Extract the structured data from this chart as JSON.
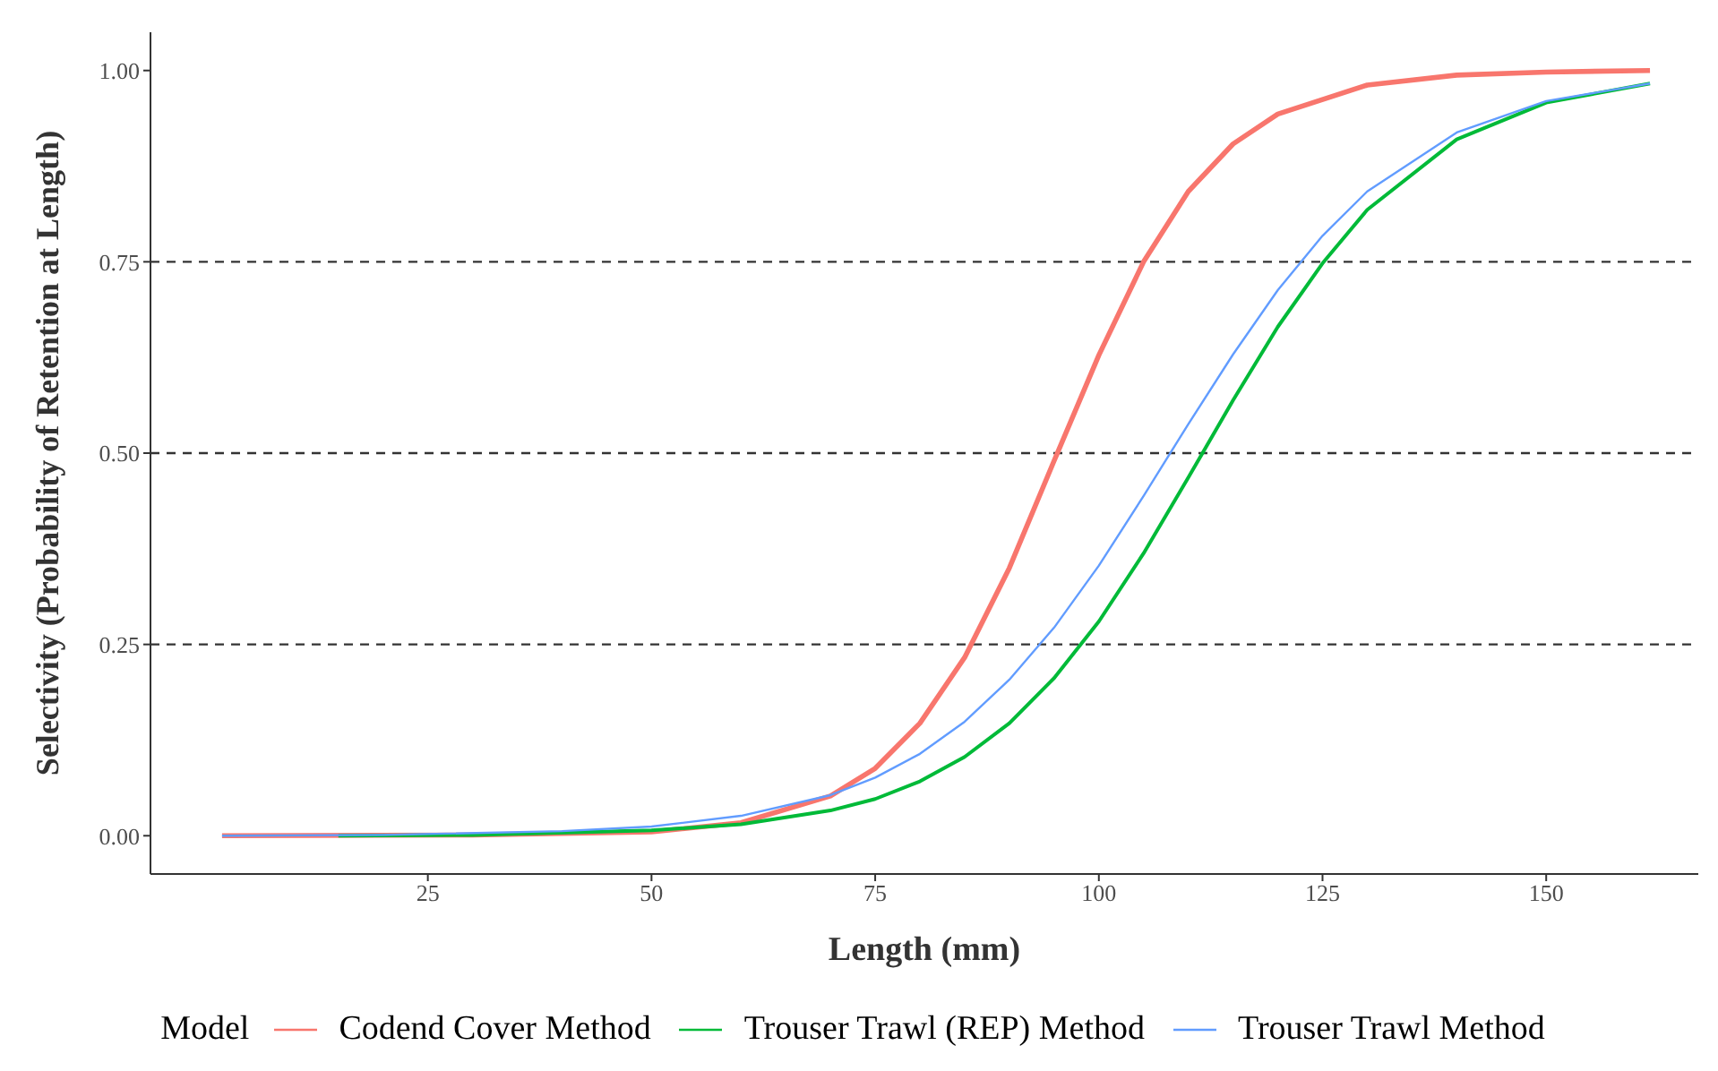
{
  "chart_data": {
    "type": "line",
    "xlabel": "Length (mm)",
    "ylabel": "Selectivity (Probability of Retention at Length)",
    "legend_title": "Model",
    "legend": "bottom",
    "grid": false,
    "marker": "none",
    "line_style": "solid",
    "xlim": [
      -6,
      167
    ],
    "xticks": [
      25,
      50,
      75,
      100,
      125,
      150
    ],
    "ylim": [
      -0.05,
      1.05
    ],
    "yticks": [
      {
        "value": 0,
        "label": "0.00"
      },
      {
        "value": 0.25,
        "label": "0.25"
      },
      {
        "value": 0.5,
        "label": "0.50"
      },
      {
        "value": 0.75,
        "label": "0.75"
      },
      {
        "value": 1,
        "label": "1.00"
      }
    ],
    "ref_lines": [
      {
        "axis": "y",
        "value": 0.25,
        "line_style": "dashed",
        "color": "#333333"
      },
      {
        "axis": "y",
        "value": 0.5,
        "line_style": "dashed",
        "color": "#333333"
      },
      {
        "axis": "y",
        "value": 0.75,
        "line_style": "dashed",
        "color": "#333333"
      }
    ],
    "series": [
      {
        "name": "Codend Cover Method",
        "color": "#f8766d",
        "x": [
          2,
          30,
          50,
          60,
          70,
          75,
          80,
          85,
          90,
          95,
          100,
          105,
          110,
          115,
          120,
          130,
          140,
          150,
          161.6
        ],
        "values": [
          0,
          0.001,
          0.005,
          0.017,
          0.052,
          0.088,
          0.147,
          0.233,
          0.35,
          0.49,
          0.628,
          0.75,
          0.842,
          0.904,
          0.943,
          0.981,
          0.994,
          0.998,
          1
        ]
      },
      {
        "name": "Trouser Trawl (REP) Method",
        "color": "#00ba38",
        "x": [
          15,
          30,
          50,
          60,
          70,
          75,
          80,
          85,
          90,
          95,
          100,
          105,
          110,
          115,
          120,
          125,
          130,
          140,
          150,
          161.6
        ],
        "values": [
          0,
          0.001,
          0.007,
          0.015,
          0.033,
          0.048,
          0.071,
          0.103,
          0.147,
          0.206,
          0.28,
          0.369,
          0.468,
          0.569,
          0.665,
          0.748,
          0.818,
          0.91,
          0.958,
          0.983
        ]
      },
      {
        "name": "Trouser Trawl Method",
        "color": "#619cff",
        "x": [
          2,
          20,
          40,
          50,
          60,
          70,
          75,
          80,
          85,
          90,
          95,
          100,
          105,
          110,
          115,
          120,
          125,
          130,
          140,
          150,
          161.6
        ],
        "values": [
          0,
          0.001,
          0.006,
          0.012,
          0.026,
          0.053,
          0.076,
          0.107,
          0.149,
          0.204,
          0.272,
          0.353,
          0.444,
          0.538,
          0.629,
          0.713,
          0.784,
          0.842,
          0.919,
          0.96,
          0.983
        ]
      }
    ]
  }
}
